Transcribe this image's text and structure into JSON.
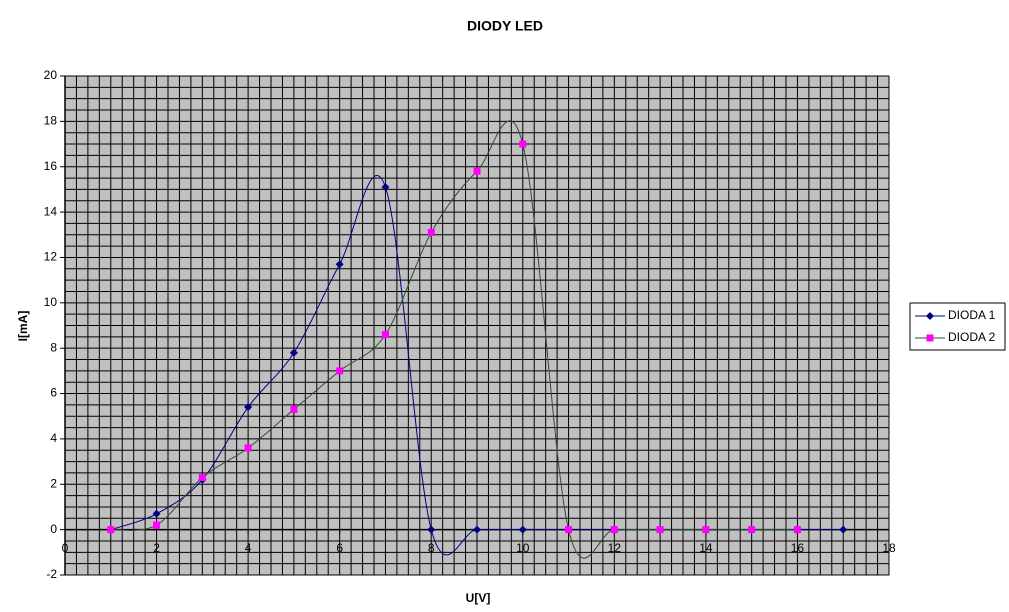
{
  "chart_data": {
    "type": "line",
    "title": "DIODY LED",
    "x_label": "U[V]",
    "y_label": "I[mA]",
    "x": [
      1,
      2,
      3,
      4,
      5,
      6,
      7,
      8,
      9,
      10,
      11,
      12,
      13,
      14,
      15,
      16,
      17
    ],
    "series": [
      {
        "name": "DIODA 1",
        "color": "#000080",
        "line_color": "#000080",
        "marker": "diamond",
        "values": [
          0,
          0.7,
          2.2,
          5.4,
          7.8,
          11.7,
          15.1,
          0,
          0,
          0,
          0,
          0,
          0,
          0,
          0,
          0,
          0
        ]
      },
      {
        "name": "DIODA 2",
        "color": "#ff00ff",
        "line_color": "#2f4f2f",
        "marker": "square",
        "values": [
          0,
          0.2,
          2.3,
          3.6,
          5.3,
          7.0,
          8.6,
          13.1,
          15.8,
          17.0,
          0,
          0,
          0,
          0,
          0,
          0,
          null
        ]
      }
    ],
    "xlim": [
      0,
      18
    ],
    "xticks": [
      0,
      2,
      4,
      6,
      8,
      10,
      12,
      14,
      16,
      18
    ],
    "ylim": [
      -2,
      20
    ],
    "yticks": [
      -2,
      0,
      2,
      4,
      6,
      8,
      10,
      12,
      14,
      16,
      18,
      20
    ],
    "grid": true,
    "smooth": true,
    "legend": "right",
    "plot_background": "#c0c0c0"
  }
}
